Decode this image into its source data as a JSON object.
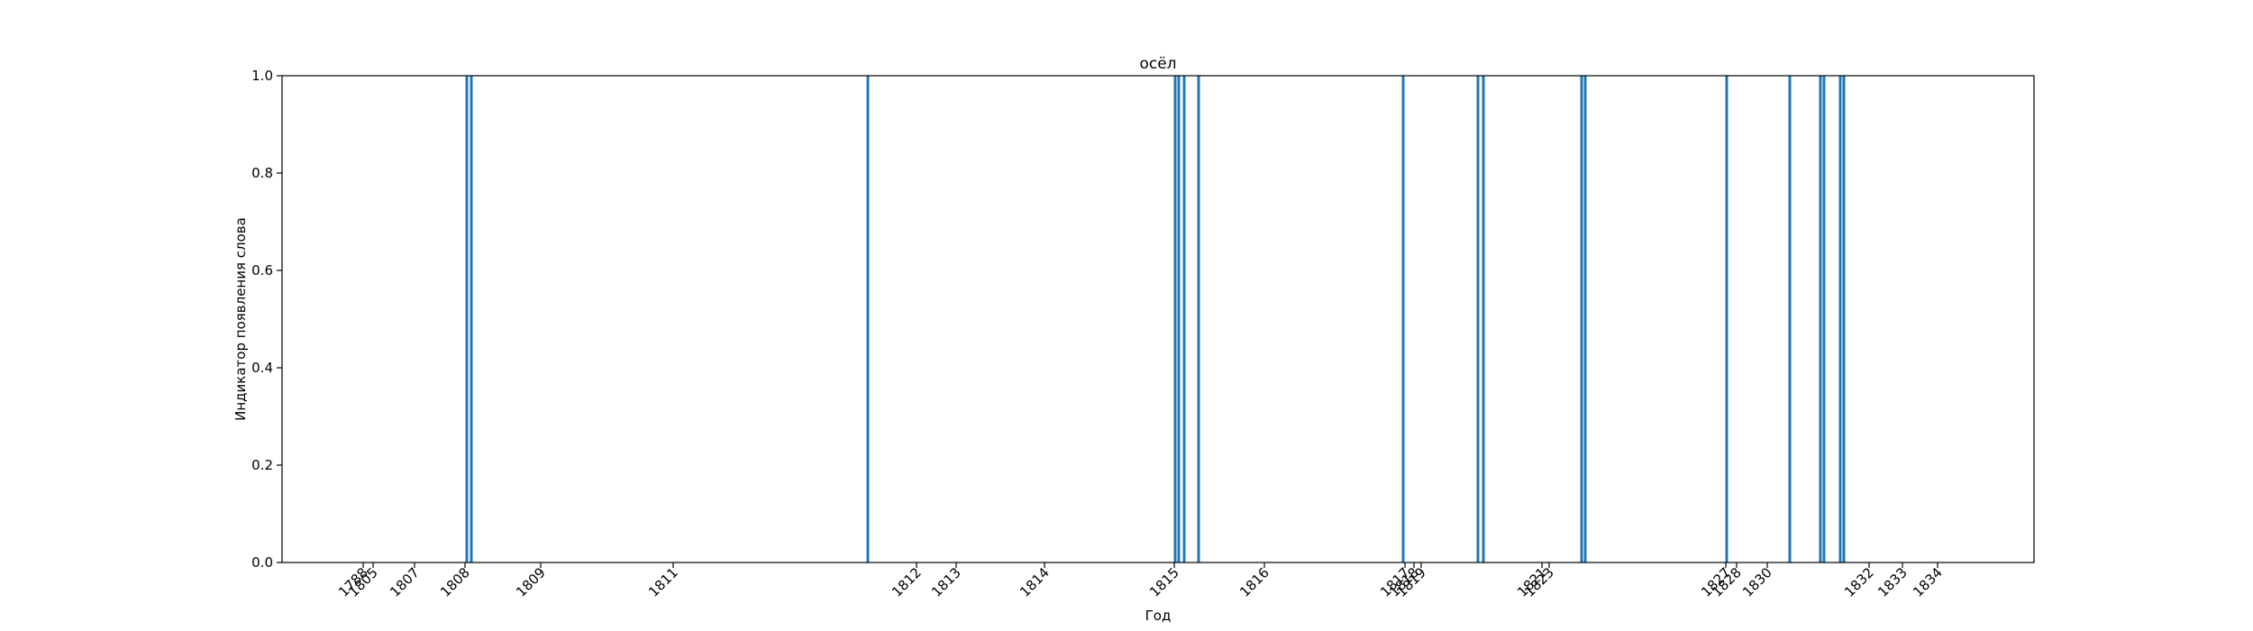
{
  "chart_data": {
    "type": "bar",
    "title": "осёл",
    "xlabel": "Год",
    "ylabel": "Индикатор появления слова",
    "ylim": [
      0,
      1
    ],
    "yticks": [
      "0.0",
      "0.2",
      "0.4",
      "0.6",
      "0.8",
      "1.0"
    ],
    "xticks": [
      {
        "label": "1788",
        "pos": 90
      },
      {
        "label": "1805",
        "pos": 101
      },
      {
        "label": "1807",
        "pos": 147
      },
      {
        "label": "1808",
        "pos": 203
      },
      {
        "label": "1809",
        "pos": 287
      },
      {
        "label": "1811",
        "pos": 434
      },
      {
        "label": "1812",
        "pos": 704
      },
      {
        "label": "1813",
        "pos": 748
      },
      {
        "label": "1814",
        "pos": 846
      },
      {
        "label": "1815",
        "pos": 990
      },
      {
        "label": "1816",
        "pos": 1090
      },
      {
        "label": "1817",
        "pos": 1246
      },
      {
        "label": "1818",
        "pos": 1256
      },
      {
        "label": "1819",
        "pos": 1264
      },
      {
        "label": "1821",
        "pos": 1398
      },
      {
        "label": "1823",
        "pos": 1406
      },
      {
        "label": "1827",
        "pos": 1602
      },
      {
        "label": "1828",
        "pos": 1614
      },
      {
        "label": "1830",
        "pos": 1648
      },
      {
        "label": "1832",
        "pos": 1761
      },
      {
        "label": "1833",
        "pos": 1798
      },
      {
        "label": "1834",
        "pos": 1837
      }
    ],
    "xlim": [
      0,
      1944
    ],
    "bars": [
      {
        "x": 205,
        "value": 1
      },
      {
        "x": 210,
        "value": 1
      },
      {
        "x": 650,
        "value": 1
      },
      {
        "x": 991,
        "value": 1
      },
      {
        "x": 995,
        "value": 1
      },
      {
        "x": 1001,
        "value": 1
      },
      {
        "x": 1017,
        "value": 1
      },
      {
        "x": 1244,
        "value": 1
      },
      {
        "x": 1327,
        "value": 1
      },
      {
        "x": 1333,
        "value": 1
      },
      {
        "x": 1442,
        "value": 1
      },
      {
        "x": 1446,
        "value": 1
      },
      {
        "x": 1603,
        "value": 1
      },
      {
        "x": 1673,
        "value": 1
      },
      {
        "x": 1707,
        "value": 1
      },
      {
        "x": 1711,
        "value": 1
      },
      {
        "x": 1729,
        "value": 1
      },
      {
        "x": 1733,
        "value": 1
      }
    ],
    "bar_color": "#1f77b4",
    "legend": "none",
    "grid": false
  }
}
